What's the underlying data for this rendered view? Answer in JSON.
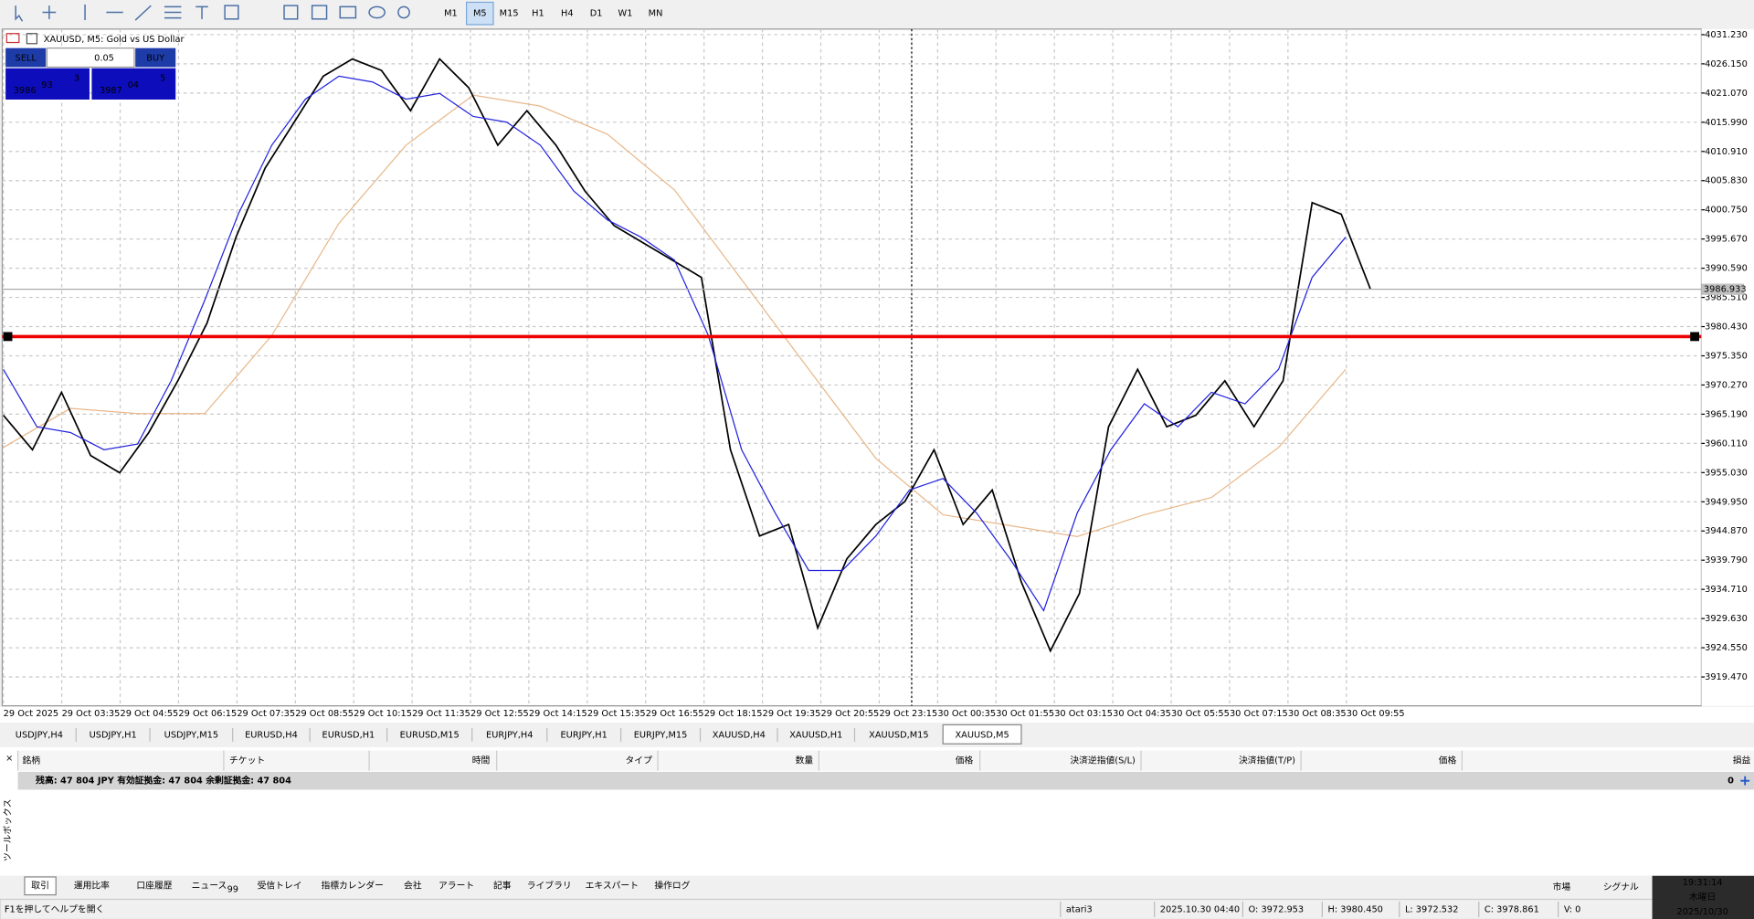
{
  "toolbar": {
    "timeframes": [
      "M1",
      "M5",
      "M15",
      "H1",
      "H4",
      "D1",
      "W1",
      "MN"
    ],
    "active": 1
  },
  "chart": {
    "header": "XAUUSD, M5:  Gold vs US Dollar",
    "trade": {
      "sell": "SELL",
      "lot": "0.05",
      "buy": "BUY",
      "bid_big": "3986",
      "bid_main": "93",
      "bid_small": "3",
      "ask_big": "3987",
      "ask_main": "04",
      "ask_small": "5"
    },
    "ylim": [
      3914.45,
      4032.2
    ],
    "yticks": [
      {
        "value": 4031.23,
        "label": "4031.230"
      },
      {
        "value": 4026.15,
        "label": "4026.150"
      },
      {
        "value": 4021.07,
        "label": "4021.070"
      },
      {
        "value": 4015.99,
        "label": "4015.990"
      },
      {
        "value": 4010.91,
        "label": "4010.910"
      },
      {
        "value": 4005.83,
        "label": "4005.830"
      },
      {
        "value": 4000.75,
        "label": "4000.750"
      },
      {
        "value": 3995.67,
        "label": "3995.670"
      },
      {
        "value": 3990.59,
        "label": "3990.590"
      },
      {
        "value": 3985.51,
        "label": "3985.510"
      },
      {
        "value": 3980.43,
        "label": "3980.430"
      },
      {
        "value": 3975.35,
        "label": "3975.350"
      },
      {
        "value": 3970.27,
        "label": "3970.270"
      },
      {
        "value": 3965.19,
        "label": "3965.190"
      },
      {
        "value": 3960.11,
        "label": "3960.110"
      },
      {
        "value": 3955.03,
        "label": "3955.030"
      },
      {
        "value": 3949.95,
        "label": "3949.950"
      },
      {
        "value": 3944.87,
        "label": "3944.870"
      },
      {
        "value": 3939.79,
        "label": "3939.790"
      },
      {
        "value": 3934.71,
        "label": "3934.710"
      },
      {
        "value": 3929.63,
        "label": "3929.630"
      },
      {
        "value": 3924.55,
        "label": "3924.550"
      },
      {
        "value": 3919.47,
        "label": "3919.470"
      }
    ],
    "xticks": [
      "29 Oct 2025",
      "29 Oct 03:35",
      "29 Oct 04:55",
      "29 Oct 06:15",
      "29 Oct 07:35",
      "29 Oct 08:55",
      "29 Oct 10:15",
      "29 Oct 11:35",
      "29 Oct 12:55",
      "29 Oct 14:15",
      "29 Oct 15:35",
      "29 Oct 16:55",
      "29 Oct 18:15",
      "29 Oct 19:35",
      "29 Oct 20:55",
      "29 Oct 23:15",
      "30 Oct 00:35",
      "30 Oct 01:55",
      "30 Oct 03:15",
      "30 Oct 04:35",
      "30 Oct 05:55",
      "30 Oct 07:15",
      "30 Oct 08:35",
      "30 Oct 09:55"
    ],
    "close": [
      3965,
      3959,
      3969,
      3958,
      3955,
      3962,
      3971,
      3981,
      3996,
      4008,
      4016,
      4024,
      4027,
      4025,
      4018,
      4027,
      4022,
      4012,
      4018,
      4012,
      4004,
      3998,
      3995,
      3992,
      3989,
      3959,
      3944,
      3946,
      3928,
      3940,
      3946,
      3950,
      3959,
      3946,
      3952,
      3936,
      3924,
      3934,
      3963,
      3973,
      3963,
      3965,
      3971,
      3963,
      3971,
      4002,
      4000,
      3987
    ],
    "ma_fast": [
      3973,
      3963,
      3962,
      3959,
      3960,
      3971,
      3985,
      4000,
      4012,
      4020,
      4024,
      4023,
      4020,
      4021,
      4017,
      4016,
      4012,
      4004,
      3999,
      3996,
      3992,
      3979,
      3959,
      3948,
      3938,
      3938,
      3944,
      3952,
      3954,
      3948,
      3940,
      3931,
      3948,
      3959,
      3967,
      3963,
      3969,
      3967,
      3973,
      3989,
      3996
    ],
    "ma_slow": [
      3959.4,
      3966.2,
      3965.3,
      3965.3,
      3978.9,
      3998.4,
      4012.0,
      4020.7,
      4018.8,
      4013.9,
      4004.2,
      3988.6,
      3973.0,
      3957.5,
      3947.7,
      3945.8,
      3943.9,
      3947.7,
      3950.7,
      3959.4,
      3973.0
    ],
    "level": 3978.7,
    "current": {
      "value": 3986.93,
      "label": "3986.933"
    }
  },
  "tabs": {
    "items": [
      "USDJPY,H4",
      "USDJPY,H1",
      "USDJPY,M15",
      "EURUSD,H4",
      "EURUSD,H1",
      "EURUSD,M15",
      "EURJPY,H4",
      "EURJPY,H1",
      "EURJPY,M15",
      "XAUUSD,H4",
      "XAUUSD,H1",
      "XAUUSD,M15",
      "XAUUSD,M5"
    ],
    "active": 12
  },
  "terminal": {
    "columns": [
      "銘柄",
      "チケット",
      "時間",
      "タイプ",
      "数量",
      "価格",
      "決済逆指値(S/L)",
      "決済指値(T/P)",
      "価格",
      "損益"
    ],
    "balance": "残高: 47 804 JPY  有効証拠金: 47 804  余剰証拠金: 47 804",
    "profit": "0",
    "side_label": "ツールボックス",
    "tabs": [
      "取引",
      "運用比率",
      "口座履歴",
      "ニュース",
      "受信トレイ",
      "指標カレンダー",
      "会社",
      "アラート",
      "記事",
      "ライブラリ",
      "エキスパート",
      "操作ログ"
    ],
    "news_badge": "99",
    "right": [
      "市場",
      "シグナル"
    ]
  },
  "clock": {
    "time": "19:31:14",
    "weekday": "木曜日",
    "date": "2025/10/30"
  },
  "status": {
    "help": "F1を押してヘルプを開く",
    "profile": "atari3",
    "datetime": "2025.10.30 04:40",
    "open": "O: 3972.953",
    "high": "H: 3980.450",
    "low": "L: 3972.532",
    "close": "C: 3978.861",
    "volume": "V: 0"
  }
}
